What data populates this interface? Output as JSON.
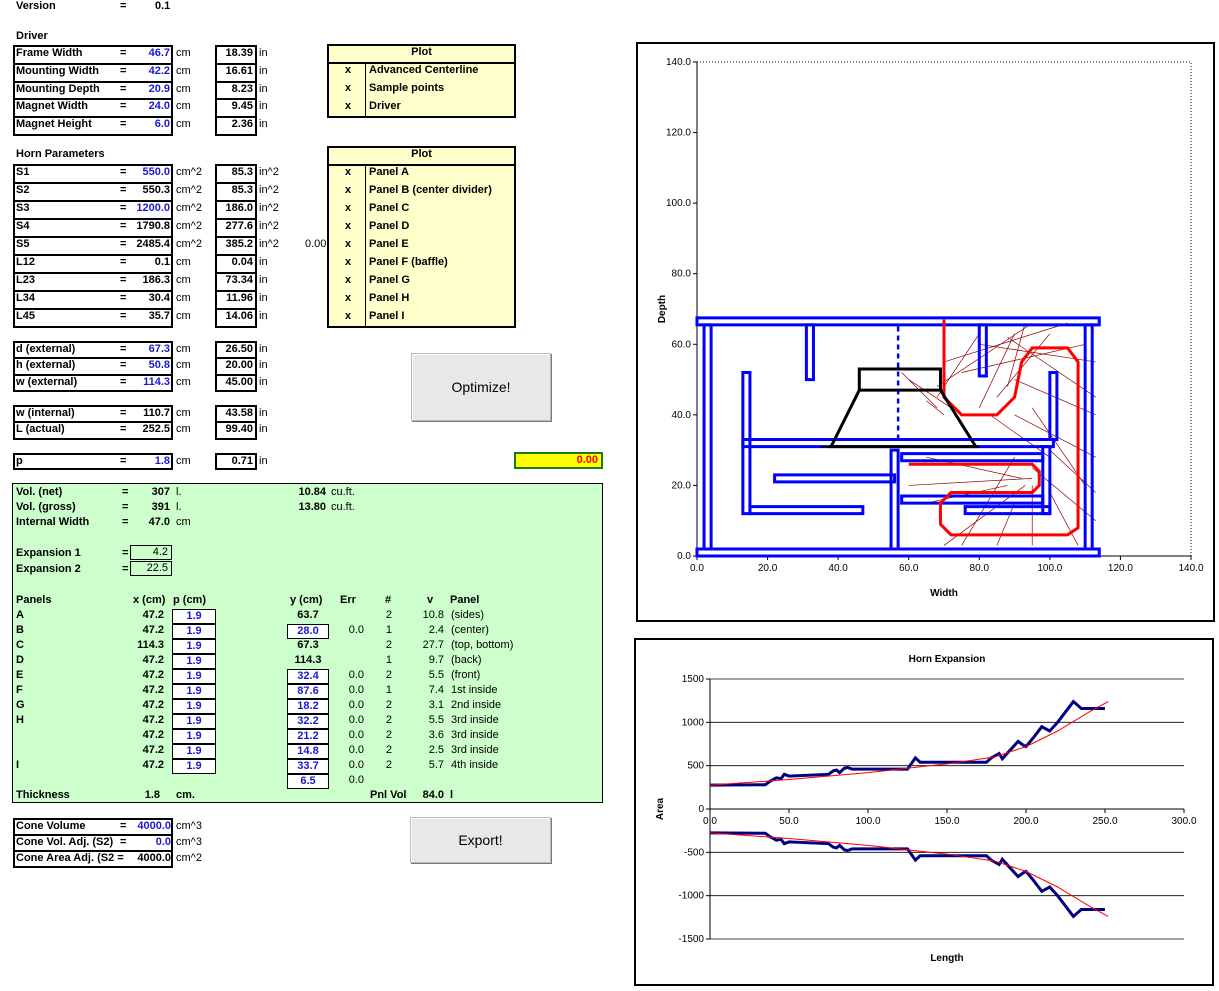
{
  "version": {
    "label": "Version",
    "eq": "=",
    "value": "0.1"
  },
  "driver": {
    "title": "Driver",
    "rows": [
      {
        "label": "Frame Width",
        "value": "46.7",
        "unit": "cm",
        "conv": "18.39",
        "conv_unit": "in"
      },
      {
        "label": "Mounting Width",
        "value": "42.2",
        "unit": "cm",
        "conv": "16.61",
        "conv_unit": "in"
      },
      {
        "label": "Mounting Depth",
        "value": "20.9",
        "unit": "cm",
        "conv": "8.23",
        "conv_unit": "in"
      },
      {
        "label": "Magnet Width",
        "value": "24.0",
        "unit": "cm",
        "conv": "9.45",
        "conv_unit": "in"
      },
      {
        "label": "Magnet Height",
        "value": "6.0",
        "unit": "cm",
        "conv": "2.36",
        "conv_unit": "in"
      }
    ]
  },
  "plot1": {
    "header": "Plot",
    "items": [
      {
        "mark": "x",
        "label": "Advanced Centerline"
      },
      {
        "mark": "x",
        "label": "Sample points"
      },
      {
        "mark": "x",
        "label": "Driver"
      }
    ]
  },
  "horn": {
    "title": "Horn Parameters",
    "rows": [
      {
        "label": "S1",
        "value": "550.0",
        "unit": "cm^2",
        "conv": "85.3",
        "conv_unit": "in^2",
        "blue": true
      },
      {
        "label": "S2",
        "value": "550.3",
        "unit": "cm^2",
        "conv": "85.3",
        "conv_unit": "in^2",
        "blue": false
      },
      {
        "label": "S3",
        "value": "1200.0",
        "unit": "cm^2",
        "conv": "186.0",
        "conv_unit": "in^2",
        "blue": true
      },
      {
        "label": "S4",
        "value": "1790.8",
        "unit": "cm^2",
        "conv": "277.6",
        "conv_unit": "in^2",
        "blue": false
      },
      {
        "label": "S5",
        "value": "2485.4",
        "unit": "cm^2",
        "conv": "385.2",
        "conv_unit": "in^2",
        "blue": false
      },
      {
        "label": "L12",
        "value": "0.1",
        "unit": "cm",
        "conv": "0.04",
        "conv_unit": "in",
        "blue": false
      },
      {
        "label": "L23",
        "value": "186.3",
        "unit": "cm",
        "conv": "73.34",
        "conv_unit": "in",
        "blue": false
      },
      {
        "label": "L34",
        "value": "30.4",
        "unit": "cm",
        "conv": "11.96",
        "conv_unit": "in",
        "blue": false
      },
      {
        "label": "L45",
        "value": "35.7",
        "unit": "cm",
        "conv": "14.06",
        "conv_unit": "in",
        "blue": false
      }
    ],
    "s5_extra": "0.00"
  },
  "plot2": {
    "header": "Plot",
    "items": [
      {
        "mark": "x",
        "label": "Panel A"
      },
      {
        "mark": "x",
        "label": "Panel B (center divider)"
      },
      {
        "mark": "x",
        "label": "Panel C"
      },
      {
        "mark": "x",
        "label": "Panel D"
      },
      {
        "mark": "x",
        "label": "Panel E"
      },
      {
        "mark": "x",
        "label": "Panel F (baffle)"
      },
      {
        "mark": "x",
        "label": "Panel G"
      },
      {
        "mark": "x",
        "label": "Panel H"
      },
      {
        "mark": "x",
        "label": "Panel I"
      }
    ]
  },
  "external": {
    "rows": [
      {
        "label": "d (external)",
        "value": "67.3",
        "unit": "cm",
        "conv": "26.50",
        "conv_unit": "in"
      },
      {
        "label": "h (external)",
        "value": "50.8",
        "unit": "cm",
        "conv": "20.00",
        "conv_unit": "in"
      },
      {
        "label": "w (external)",
        "value": "114.3",
        "unit": "cm",
        "conv": "45.00",
        "conv_unit": "in"
      }
    ]
  },
  "internal": {
    "rows": [
      {
        "label": "w (internal)",
        "value": "110.7",
        "unit": "cm",
        "conv": "43.58",
        "conv_unit": "in"
      },
      {
        "label": "L (actual)",
        "value": "252.5",
        "unit": "cm",
        "conv": "99.40",
        "conv_unit": "in"
      }
    ]
  },
  "p_row": {
    "label": "p",
    "value": "1.8",
    "unit": "cm",
    "conv": "0.71",
    "conv_unit": "in"
  },
  "eq": "=",
  "optimize_label": "Optimize!",
  "export_label": "Export!",
  "result_value": "0.00",
  "green": {
    "vol_net_label": "Vol. (net)",
    "vol_net": "307",
    "vol_net_unit": "l.",
    "vol_net_cuft": "10.84",
    "cuft_unit": "cu.ft.",
    "vol_gross_label": "Vol. (gross)",
    "vol_gross": "391",
    "vol_gross_unit": "l.",
    "vol_gross_cuft": "13.80",
    "internal_width_label": "Internal Width",
    "internal_width": "47.0",
    "internal_width_unit": "cm",
    "exp1_label": "Expansion 1",
    "exp1": "4.2",
    "exp2_label": "Expansion 2",
    "exp2": "22.5",
    "headers": {
      "panels": "Panels",
      "x": "x (cm)",
      "p": "p (cm)",
      "y": "y (cm)",
      "err": "Err",
      "num": "#",
      "v": "v",
      "panel": "Panel"
    },
    "rows": [
      {
        "name": "A",
        "x": "47.2",
        "p": "1.9",
        "y": "63.7",
        "yBox": false,
        "err": "",
        "num": "2",
        "v": "10.8",
        "panel": "(sides)"
      },
      {
        "name": "B",
        "x": "47.2",
        "p": "1.9",
        "y": "28.0",
        "yBox": true,
        "err": "0.0",
        "num": "1",
        "v": "2.4",
        "panel": "(center)"
      },
      {
        "name": "C",
        "x": "114.3",
        "p": "1.9",
        "y": "67.3",
        "yBox": false,
        "err": "",
        "num": "2",
        "v": "27.7",
        "panel": "(top, bottom)"
      },
      {
        "name": "D",
        "x": "47.2",
        "p": "1.9",
        "y": "114.3",
        "yBox": false,
        "err": "",
        "num": "1",
        "v": "9.7",
        "panel": "(back)"
      },
      {
        "name": "E",
        "x": "47.2",
        "p": "1.9",
        "y": "32.4",
        "yBox": true,
        "err": "0.0",
        "num": "2",
        "v": "5.5",
        "panel": "(front)"
      },
      {
        "name": "F",
        "x": "47.2",
        "p": "1.9",
        "y": "87.6",
        "yBox": true,
        "err": "0.0",
        "num": "1",
        "v": "7.4",
        "panel": "1st inside"
      },
      {
        "name": "G",
        "x": "47.2",
        "p": "1.9",
        "y": "18.2",
        "yBox": true,
        "err": "0.0",
        "num": "2",
        "v": "3.1",
        "panel": "2nd inside"
      },
      {
        "name": "H",
        "x": "47.2",
        "p": "1.9",
        "y": "32.2",
        "yBox": true,
        "err": "0.0",
        "num": "2",
        "v": "5.5",
        "panel": "3rd inside"
      },
      {
        "name": "",
        "x": "47.2",
        "p": "1.9",
        "y": "21.2",
        "yBox": true,
        "err": "0.0",
        "num": "2",
        "v": "3.6",
        "panel": "3rd inside"
      },
      {
        "name": "",
        "x": "47.2",
        "p": "1.9",
        "y": "14.8",
        "yBox": true,
        "err": "0.0",
        "num": "2",
        "v": "2.5",
        "panel": "3rd inside"
      },
      {
        "name": "I",
        "x": "47.2",
        "p": "1.9",
        "y": "33.7",
        "yBox": true,
        "err": "0.0",
        "num": "2",
        "v": "5.7",
        "panel": "4th inside"
      }
    ],
    "extra_y": "6.5",
    "extra_err": "0.0",
    "thickness_label": "Thickness",
    "thickness": "1.8",
    "thickness_unit": "cm.",
    "pnlvol_label": "Pnl Vol",
    "pnlvol": "84.0",
    "pnlvol_unit": "l"
  },
  "cone": {
    "rows": [
      {
        "label": "Cone Volume",
        "eq": "=",
        "value": "4000.0",
        "unit": "cm^3"
      },
      {
        "label": "Cone Vol. Adj. (S2)",
        "eq": "=",
        "value": "0.0",
        "unit": "cm^3"
      },
      {
        "label": "Cone Area Adj. (S2 =",
        "eq": "",
        "value": "4000.0",
        "unit": "cm^2"
      }
    ]
  },
  "layout_chart": {
    "xlabel": "Width",
    "ylabel": "Depth",
    "xticks": [
      "0.0",
      "20.0",
      "40.0",
      "60.0",
      "80.0",
      "100.0",
      "120.0",
      "140.0"
    ],
    "yticks": [
      "0.0",
      "20.0",
      "40.0",
      "60.0",
      "80.0",
      "100.0",
      "120.0",
      "140.0"
    ],
    "xlim": [
      0,
      140
    ],
    "ylim": [
      0,
      140
    ],
    "colors": {
      "panels": "#0000ff",
      "centerline": "#ff0000",
      "driver": "#000000",
      "samples": "#8b0000"
    }
  },
  "chart_data": {
    "type": "line",
    "title": "Horn Expansion",
    "xlabel": "Length",
    "ylabel": "Area",
    "xlim": [
      0,
      300
    ],
    "ylim": [
      -1500,
      1500
    ],
    "xticks": [
      "0.0",
      "50.0",
      "100.0",
      "150.0",
      "200.0",
      "250.0",
      "300.0"
    ],
    "yticks": [
      "1500",
      "1000",
      "500",
      "0",
      "-500",
      "-1000",
      "-1500"
    ],
    "series": [
      {
        "color": "#000080",
        "x": [
          0,
          35,
          38,
          42,
          45,
          47,
          50,
          75,
          78,
          80,
          82,
          85,
          87,
          90,
          125,
          130,
          133,
          175,
          178,
          180,
          183,
          185,
          190,
          195,
          198,
          200,
          205,
          210,
          215,
          220,
          225,
          230,
          235,
          240,
          250
        ],
        "y": [
          275,
          280,
          320,
          360,
          350,
          400,
          380,
          400,
          440,
          450,
          420,
          470,
          480,
          460,
          460,
          590,
          540,
          540,
          590,
          610,
          640,
          580,
          680,
          780,
          740,
          720,
          830,
          950,
          900,
          1000,
          1120,
          1240,
          1160,
          1160,
          1160
        ]
      },
      {
        "color": "#ff0000",
        "x": [
          0,
          50,
          100,
          150,
          180,
          200,
          220,
          240,
          252
        ],
        "y": [
          275,
          340,
          420,
          520,
          600,
          720,
          900,
          1120,
          1240
        ]
      }
    ]
  }
}
